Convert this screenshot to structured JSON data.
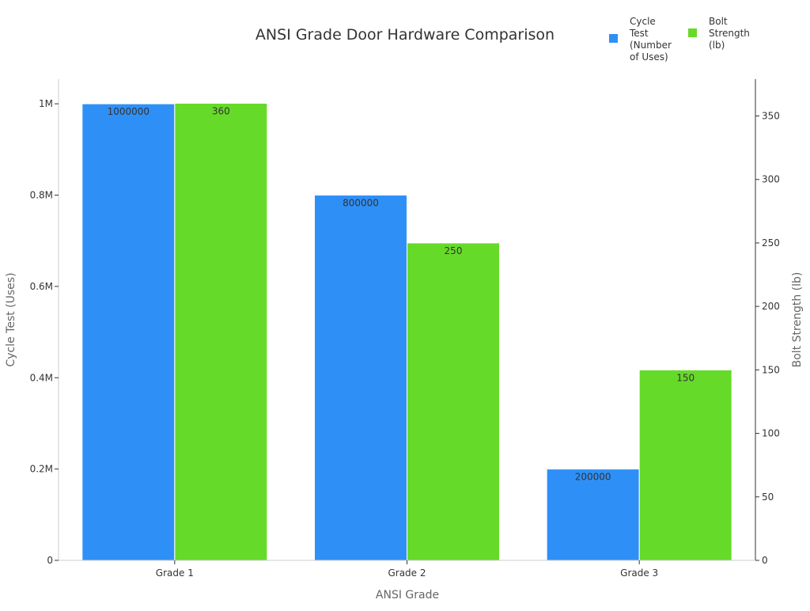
{
  "chart_data": {
    "type": "bar",
    "title": "ANSI Grade Door Hardware Comparison",
    "xlabel": "ANSI Grade",
    "ylabel": "Cycle Test (Uses)",
    "y2label": "Bolt Strength (lb)",
    "categories": [
      "Grade 1",
      "Grade 2",
      "Grade 3"
    ],
    "series": [
      {
        "name": "Cycle Test (Number of Uses)",
        "axis": "left",
        "color": "#2e90f7",
        "values": [
          1000000,
          800000,
          200000
        ],
        "labels": [
          "1000000",
          "800000",
          "200000"
        ]
      },
      {
        "name": "Bolt Strength (lb)",
        "axis": "right",
        "color": "#66da28",
        "values": [
          360,
          250,
          150
        ],
        "labels": [
          "360",
          "250",
          "150"
        ]
      }
    ],
    "ylim": [
      0,
      1054000
    ],
    "y2lim": [
      0,
      379
    ],
    "yticks": [
      0,
      200000,
      400000,
      600000,
      800000,
      1000000
    ],
    "ytick_labels": [
      "0",
      "0.2M",
      "0.4M",
      "0.6M",
      "0.8M",
      "1M"
    ],
    "y2ticks": [
      0,
      50,
      100,
      150,
      200,
      250,
      300,
      350
    ],
    "y2tick_labels": [
      "0",
      "50",
      "100",
      "150",
      "200",
      "250",
      "300",
      "350"
    ],
    "legend": {
      "position": "top-right",
      "entries": [
        "Cycle\nTest\n(Number\nof Uses)",
        "Bolt\nStrength\n(lb)"
      ]
    },
    "grid": false
  }
}
